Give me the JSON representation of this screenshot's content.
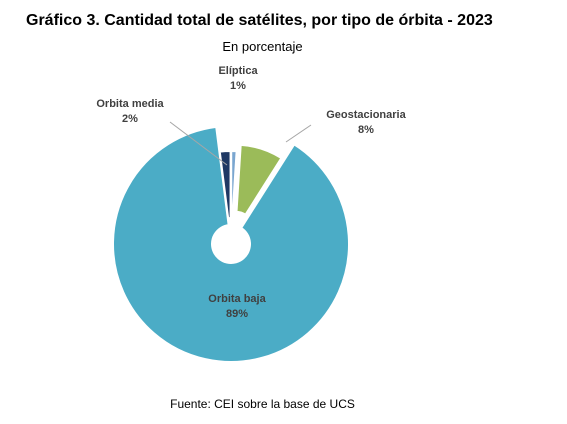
{
  "title": "Gráfico 3. Cantidad total de satélites, por tipo de órbita - 2023",
  "subtitle": "En porcentaje",
  "source": "Fuente: CEI sobre la base de UCS",
  "chart_data": {
    "type": "pie",
    "title": "Gráfico 3. Cantidad total de satélites, por tipo de órbita - 2023",
    "subtitle": "En porcentaje",
    "unit": "%",
    "slices": [
      {
        "name": "Elíptica",
        "value": 1,
        "label": "1%",
        "color": "#7aa6d0"
      },
      {
        "name": "Geostacionaria",
        "value": 8,
        "label": "8%",
        "color": "#9bbb59"
      },
      {
        "name": "Orbita baja",
        "value": 89,
        "label": "89%",
        "color": "#4bacc6"
      },
      {
        "name": "Orbita media",
        "value": 2,
        "label": "2%",
        "color": "#1f3864"
      }
    ],
    "legend": "none",
    "donut_hole": true
  }
}
